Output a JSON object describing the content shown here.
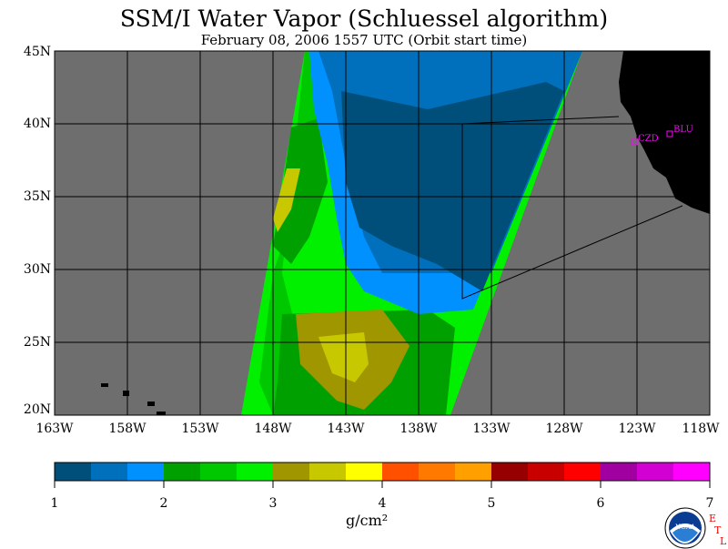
{
  "title": "SSM/I Water Vapor (Schluessel algorithm)",
  "subtitle": "February 08, 2006  1557 UTC  (Orbit start time)",
  "map": {
    "lat_labels": [
      "45N",
      "40N",
      "35N",
      "30N",
      "25N",
      "20N"
    ],
    "lon_labels": [
      "163W",
      "158W",
      "153W",
      "148W",
      "143W",
      "138W",
      "133W",
      "128W",
      "123W",
      "118W"
    ],
    "sites": [
      {
        "label": "CZD"
      },
      {
        "label": "BLU"
      }
    ],
    "colors": {
      "land_no_data": "#6e6e6e",
      "continent": "#000000",
      "site_marker": "#ff00ff",
      "grid": "#000000"
    }
  },
  "colorbar": {
    "tick_labels": [
      "1",
      "2",
      "3",
      "4",
      "5",
      "6",
      "7"
    ],
    "units": "g/cm²",
    "colors": [
      "#004f7a",
      "#0070bd",
      "#0091ff",
      "#00a000",
      "#00c800",
      "#00f000",
      "#a09600",
      "#c8c800",
      "#ffff00",
      "#ff5000",
      "#ff7800",
      "#ffa000",
      "#960000",
      "#c80000",
      "#ff0000",
      "#a000a0",
      "#d200d2",
      "#ff00ff"
    ]
  },
  "logo": {
    "agency": "NOAA",
    "lab_letters": [
      "E",
      "T",
      "L"
    ]
  }
}
